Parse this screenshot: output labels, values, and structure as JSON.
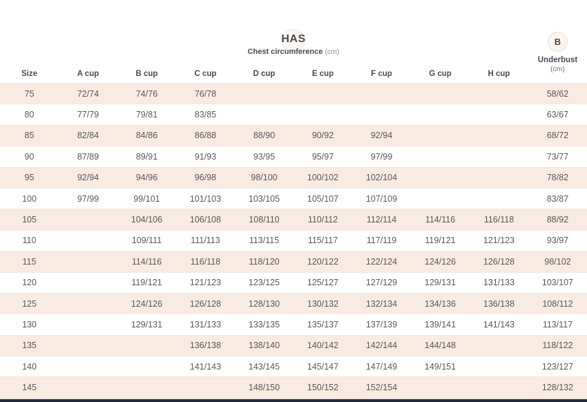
{
  "header": {
    "brand": "HAS",
    "subtitle": "Chest circumference",
    "subtitle_unit": "(cm)",
    "badge_letter": "B",
    "underbust_line1": "Underbust",
    "underbust_line2": "(cm)"
  },
  "colors": {
    "stripe": "#f9ebe2",
    "text": "#57585a",
    "header_text": "#4b4b4d",
    "line": "#eeeae6",
    "badge_bg": "#fdf4ee",
    "badge_border": "#f2ded2",
    "bottom_bar": "#272c38"
  },
  "table": {
    "columns": [
      "Size",
      "A cup",
      "B cup",
      "C cup",
      "D cup",
      "E cup",
      "F cup",
      "G cup",
      "H cup",
      ""
    ],
    "rows": [
      [
        "75",
        "72/74",
        "74/76",
        "76/78",
        "",
        "",
        "",
        "",
        "",
        "58/62"
      ],
      [
        "80",
        "77/79",
        "79/81",
        "83/85",
        "",
        "",
        "",
        "",
        "",
        "63/67"
      ],
      [
        "85",
        "82/84",
        "84/86",
        "86/88",
        "88/90",
        "90/92",
        "92/94",
        "",
        "",
        "68/72"
      ],
      [
        "90",
        "87/89",
        "89/91",
        "91/93",
        "93/95",
        "95/97",
        "97/99",
        "",
        "",
        "73/77"
      ],
      [
        "95",
        "92/94",
        "94/96",
        "96/98",
        "98/100",
        "100/102",
        "102/104",
        "",
        "",
        "78/82"
      ],
      [
        "100",
        "97/99",
        "99/101",
        "101/103",
        "103/105",
        "105/107",
        "107/109",
        "",
        "",
        "83/87"
      ],
      [
        "105",
        "",
        "104/106",
        "106/108",
        "108/110",
        "110/112",
        "112/114",
        "114/116",
        "116/118",
        "88/92"
      ],
      [
        "110",
        "",
        "109/111",
        "111/113",
        "113/115",
        "115/117",
        "117/119",
        "119/121",
        "121/123",
        "93/97"
      ],
      [
        "115",
        "",
        "114/116",
        "116/118",
        "118/120",
        "120/122",
        "122/124",
        "124/126",
        "126/128",
        "98/102"
      ],
      [
        "120",
        "",
        "119/121",
        "121/123",
        "123/125",
        "125/127",
        "127/129",
        "129/131",
        "131/133",
        "103/107"
      ],
      [
        "125",
        "",
        "124/126",
        "126/128",
        "128/130",
        "130/132",
        "132/134",
        "134/136",
        "136/138",
        "108/112"
      ],
      [
        "130",
        "",
        "129/131",
        "131/133",
        "133/135",
        "135/137",
        "137/139",
        "139/141",
        "141/143",
        "113/117"
      ],
      [
        "135",
        "",
        "",
        "136/138",
        "138/140",
        "140/142",
        "142/144",
        "144/148",
        "",
        "118/122"
      ],
      [
        "140",
        "",
        "",
        "141/143",
        "143/145",
        "145/147",
        "147/149",
        "149/151",
        "",
        "123/127"
      ],
      [
        "145",
        "",
        "",
        "",
        "148/150",
        "150/152",
        "152/154",
        "",
        "",
        "128/132"
      ]
    ]
  }
}
